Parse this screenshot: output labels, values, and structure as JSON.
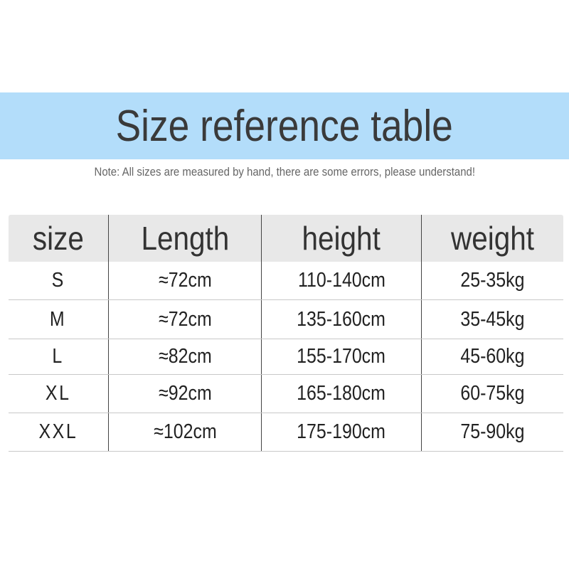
{
  "title": "Size reference table",
  "note": "Note: All sizes are measured by hand, there are some errors, please understand!",
  "colors": {
    "banner": "#b3ddfa",
    "header_bg": "#e8e8e8"
  },
  "table": {
    "headers": [
      "size",
      "Length",
      "height",
      "weight"
    ],
    "rows": [
      [
        "S",
        "≈72cm",
        "110-140cm",
        "25-35kg"
      ],
      [
        "M",
        "≈72cm",
        "135-160cm",
        "35-45kg"
      ],
      [
        "L",
        "≈82cm",
        "155-170cm",
        "45-60kg"
      ],
      [
        "XL",
        "≈92cm",
        "165-180cm",
        "60-75kg"
      ],
      [
        "XXL",
        "≈102cm",
        "175-190cm",
        "75-90kg"
      ]
    ]
  }
}
